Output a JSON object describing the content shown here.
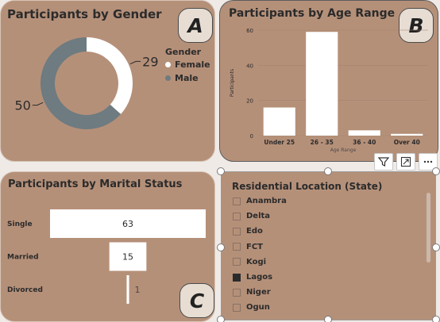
{
  "gender_card": {
    "title": "Participants by Gender",
    "badge": "A",
    "legend_title": "Gender",
    "chart_data": {
      "type": "pie",
      "labels": [
        "Female",
        "Male"
      ],
      "values": [
        29,
        50
      ],
      "colors": [
        "#ffffff",
        "#6e7b80"
      ],
      "style": "donut",
      "legend_position": "right"
    }
  },
  "age_card": {
    "title": "Participants by Age Range",
    "badge": "B",
    "chart_data": {
      "type": "bar",
      "categories": [
        "Under 25",
        "26 - 35",
        "36 - 40",
        "Over 40"
      ],
      "values": [
        16,
        59,
        3,
        1
      ],
      "xlabel": "Age Range",
      "ylabel": "Participants",
      "ylim": [
        0,
        60
      ],
      "yticks": [
        0,
        20,
        40,
        60
      ],
      "color": "#ffffff"
    }
  },
  "marital_card": {
    "title": "Participants by Marital Status",
    "badge": "C",
    "chart_data": {
      "type": "bar",
      "orientation": "funnel",
      "categories": [
        "Single",
        "Married",
        "Divorced"
      ],
      "values": [
        63,
        15,
        1
      ],
      "color": "#ffffff"
    }
  },
  "slicer": {
    "title": "Residential Location (State)",
    "items": [
      {
        "label": "Anambra",
        "checked": false
      },
      {
        "label": "Delta",
        "checked": false
      },
      {
        "label": "Edo",
        "checked": false
      },
      {
        "label": "FCT",
        "checked": false
      },
      {
        "label": "Kogi",
        "checked": false
      },
      {
        "label": "Lagos",
        "checked": true
      },
      {
        "label": "Niger",
        "checked": false
      },
      {
        "label": "Ogun",
        "checked": false
      }
    ]
  },
  "toolbar": {
    "filter_icon": "filter-icon",
    "focus_icon": "focus-mode-icon",
    "more_icon": "more-options-icon"
  }
}
